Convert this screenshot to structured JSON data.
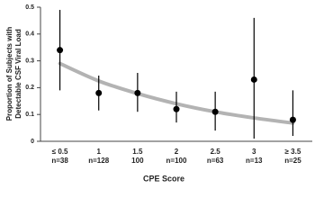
{
  "chart_data": {
    "type": "errorbar",
    "x_label": "CPE Score",
    "y_label": [
      "Proportion of Subjects with",
      "Detectable CSF Viral Load"
    ],
    "categories": [
      "≤ 0.5",
      "1",
      "1.5",
      "2",
      "2.5",
      "3",
      "≥ 3.5"
    ],
    "sample_labels": [
      "n=38",
      "n=128",
      "100",
      "n=100",
      "n=63",
      "n=13",
      "n=25"
    ],
    "ylim": [
      0,
      0.5
    ],
    "yticks": [
      0,
      0.1,
      0.2,
      0.3,
      0.4,
      0.5
    ],
    "series": [
      {
        "type": "errorbar",
        "color": "#000000",
        "values": [
          0.34,
          0.18,
          0.18,
          0.12,
          0.11,
          0.23,
          0.08
        ],
        "lower": [
          0.19,
          0.115,
          0.11,
          0.07,
          0.04,
          0.01,
          0.02
        ],
        "upper": [
          0.49,
          0.245,
          0.255,
          0.185,
          0.185,
          0.46,
          0.19
        ]
      },
      {
        "type": "curve",
        "color": "#b3b3b3",
        "values": [
          0.29,
          0.225,
          0.178,
          0.14,
          0.11,
          0.087,
          0.068
        ]
      }
    ]
  }
}
